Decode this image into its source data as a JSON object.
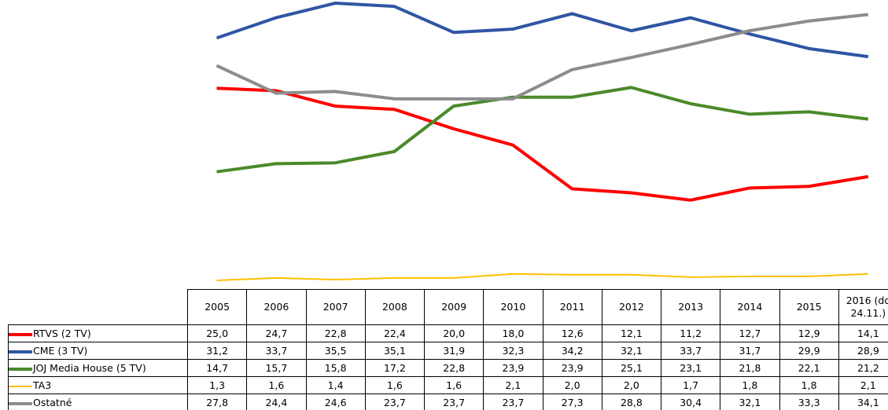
{
  "chart_data": {
    "type": "line",
    "categories": [
      "2005",
      "2006",
      "2007",
      "2008",
      "2009",
      "2010",
      "2011",
      "2012",
      "2013",
      "2014",
      "2015",
      "2016 (do 24.11.)"
    ],
    "series": [
      {
        "name": "RTVS (2 TV)",
        "color": "#ff0000",
        "values": [
          25.0,
          24.7,
          22.8,
          22.4,
          20.0,
          18.0,
          12.6,
          12.1,
          11.2,
          12.7,
          12.9,
          14.1
        ],
        "value_labels": [
          "25,0",
          "24,7",
          "22,8",
          "22,4",
          "20,0",
          "18,0",
          "12,6",
          "12,1",
          "11,2",
          "12,7",
          "12,9",
          "14,1"
        ]
      },
      {
        "name": "CME (3 TV)",
        "color": "#2f55a4",
        "values": [
          31.2,
          33.7,
          35.5,
          35.1,
          31.9,
          32.3,
          34.2,
          32.1,
          33.7,
          31.7,
          29.9,
          28.9
        ],
        "value_labels": [
          "31,2",
          "33,7",
          "35,5",
          "35,1",
          "31,9",
          "32,3",
          "34,2",
          "32,1",
          "33,7",
          "31,7",
          "29,9",
          "28,9"
        ]
      },
      {
        "name": "JOJ Media House (5 TV)",
        "color": "#4a8a2a",
        "values": [
          14.7,
          15.7,
          15.8,
          17.2,
          22.8,
          23.9,
          23.9,
          25.1,
          23.1,
          21.8,
          22.1,
          21.2
        ],
        "value_labels": [
          "14,7",
          "15,7",
          "15,8",
          "17,2",
          "22,8",
          "23,9",
          "23,9",
          "25,1",
          "23,1",
          "21,8",
          "22,1",
          "21,2"
        ]
      },
      {
        "name": "TA3",
        "color": "#ffc000",
        "values": [
          1.3,
          1.6,
          1.4,
          1.6,
          1.6,
          2.1,
          2.0,
          2.0,
          1.7,
          1.8,
          1.8,
          2.1
        ],
        "value_labels": [
          "1,3",
          "1,6",
          "1,4",
          "1,6",
          "1,6",
          "2,1",
          "2,0",
          "2,0",
          "1,7",
          "1,8",
          "1,8",
          "2,1"
        ]
      },
      {
        "name": "Ostatné",
        "color": "#8c8c8c",
        "values": [
          27.8,
          24.4,
          24.6,
          23.7,
          23.7,
          23.7,
          27.3,
          28.8,
          30.4,
          32.1,
          33.3,
          34.1
        ],
        "value_labels": [
          "27,8",
          "24,4",
          "24,6",
          "23,7",
          "23,7",
          "23,7",
          "27,3",
          "28,8",
          "30,4",
          "32,1",
          "33,3",
          "34,1"
        ]
      }
    ]
  }
}
